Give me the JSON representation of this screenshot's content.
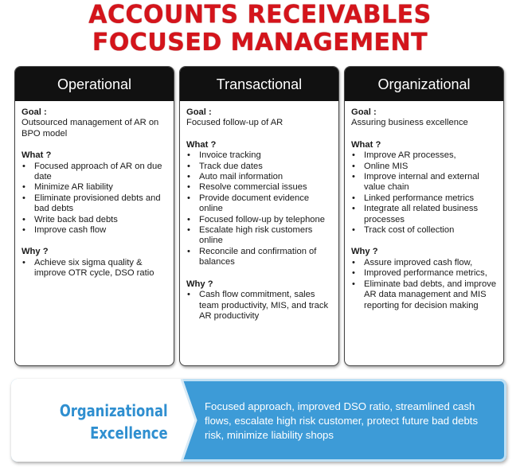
{
  "title": {
    "line1": "ACCOUNTS RECEIVABLES",
    "line2": "FOCUSED MANAGEMENT"
  },
  "columns": [
    {
      "heading": "Operational",
      "goal_label": "Goal :",
      "goal": "Outsourced management of AR on BPO model",
      "what_label": "What ?",
      "what": [
        "Focused approach of AR on due date",
        "Minimize AR liability",
        "Eliminate  provisioned debts and bad debts",
        "Write back bad debts",
        "Improve cash flow"
      ],
      "why_label": "Why ?",
      "why": [
        "Achieve six sigma quality & improve OTR cycle, DSO ratio"
      ]
    },
    {
      "heading": "Transactional",
      "goal_label": "Goal :",
      "goal": "Focused follow-up of AR",
      "what_label": "What ?",
      "what": [
        "Invoice tracking",
        "Track due dates",
        "Auto mail information",
        "Resolve commercial issues",
        "Provide  document evidence online",
        "Focused follow-up by telephone",
        "Escalate high risk customers online",
        "Reconcile and confirmation of balances"
      ],
      "why_label": "Why ?",
      "why": [
        "Cash flow commitment, sales team productivity, MIS, and track AR productivity"
      ]
    },
    {
      "heading": "Organizational",
      "goal_label": "Goal :",
      "goal": "Assuring business excellence",
      "what_label": "What ?",
      "what": [
        "Improve AR processes,",
        "Online MIS",
        "Improve internal and external value chain",
        "Linked performance metrics",
        "Integrate all related business processes",
        "Track cost of collection"
      ],
      "why_label": "Why ?",
      "why": [
        "Assure improved cash flow,",
        "Improved performance metrics,",
        "Eliminate bad debts, and improve AR data management and MIS reporting for decision making"
      ]
    }
  ],
  "banner": {
    "label_line1": "Organizational",
    "label_line2": "Excellence",
    "description": "Focused approach, improved DSO ratio, streamlined cash flows, escalate high risk customer, protect future bad debts risk, minimize liability shops"
  },
  "colors": {
    "title": "#d4141b",
    "header_bg": "#111111",
    "banner_bg": "#3d9bd7",
    "banner_label": "#2f8fd0"
  }
}
